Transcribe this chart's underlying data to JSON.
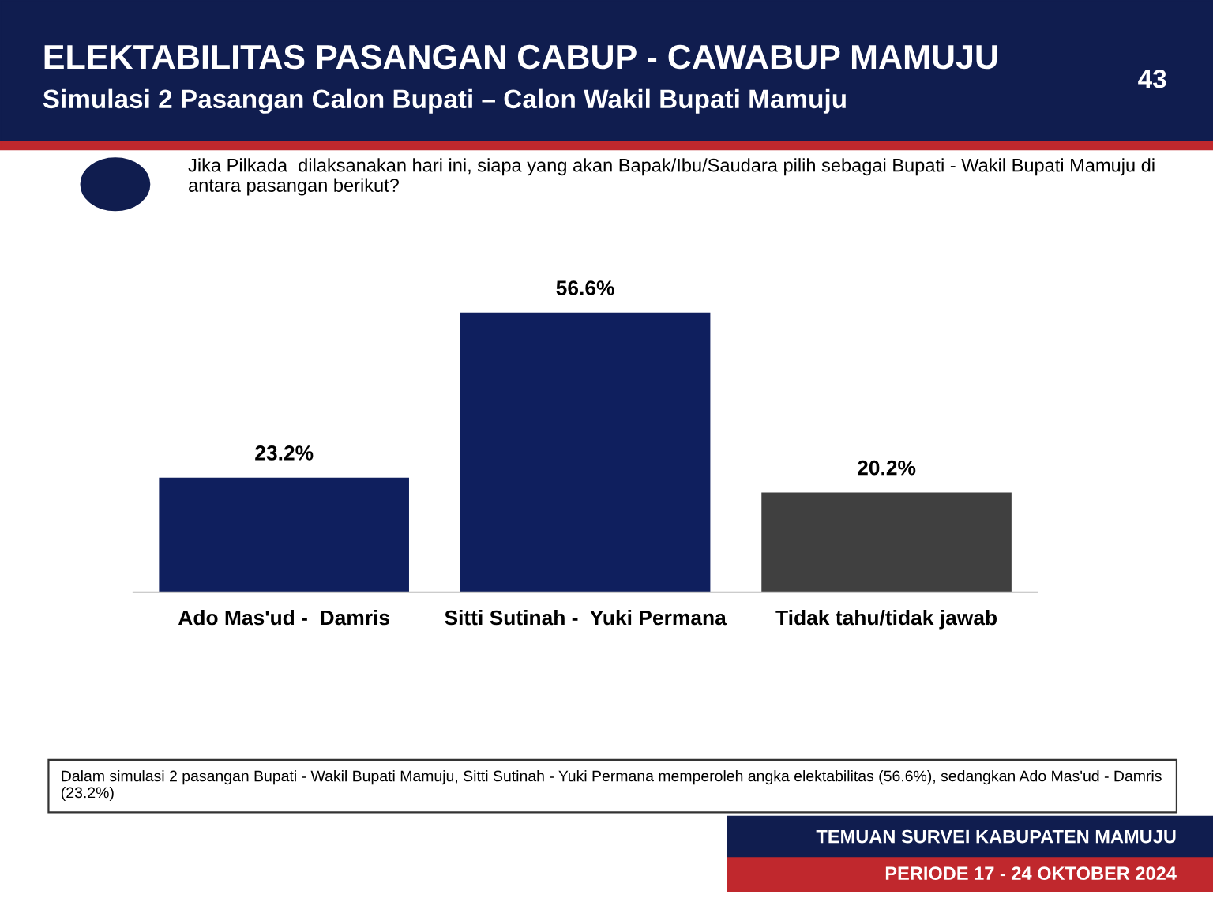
{
  "chart_data": {
    "type": "bar",
    "title": "ELEKTABILITAS PASANGAN CABUP - CAWABUP MAMUJU",
    "subtitle": "Simulasi 2 Pasangan Calon Bupati – Calon Wakil Bupati Mamuju",
    "categories": [
      "Ado Mas'ud -  Damris",
      "Sitti Sutinah -  Yuki Permana",
      "Tidak tahu/tidak jawab"
    ],
    "values": [
      23.2,
      56.6,
      20.2
    ],
    "value_labels": [
      "23.2%",
      "56.6%",
      "20.2%"
    ],
    "colors": [
      "#0f1f5e",
      "#0f1f5e",
      "#404040"
    ],
    "annotations": [
      "Jika Pilkada  dilaksanakan hari ini, siapa yang akan Bapak/Ibu/Saudara pilih sebagai Bupati - Wakil Bupati Mamuju di antara pasangan berikut?",
      "Dalam simulasi 2 pasangan Bupati - Wakil Bupati Mamuju, Sitti Sutinah - Yuki Permana memperoleh angka elektabilitas (56.6%), sedangkan Ado Mas'ud - Damris (23.2%)",
      "43",
      "TEMUAN SURVEI KABUPATEN MAMUJU",
      "PERIODE 17 - 24 OKTOBER 2024"
    ],
    "grid": false,
    "legend": false
  }
}
